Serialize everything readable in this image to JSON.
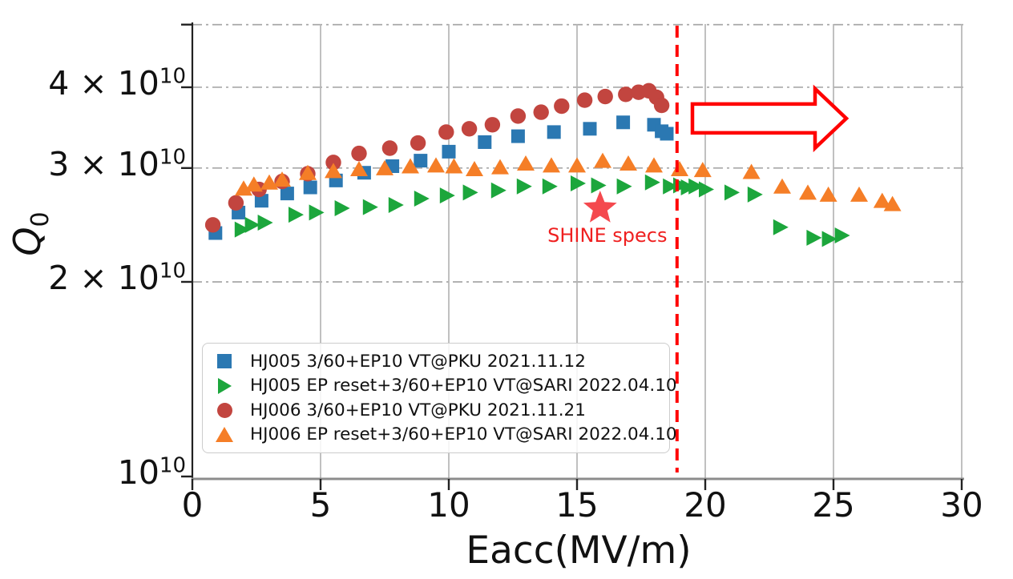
{
  "figure": {
    "background": "#ffffff",
    "x_axis": {
      "label": "Eacc(MV/m)",
      "ticks": [
        0,
        5,
        10,
        15,
        20,
        25,
        30
      ],
      "range": [
        0,
        30
      ]
    },
    "y_axis": {
      "label": "Q",
      "label_sub": "0",
      "scale": "log",
      "range_1e10": [
        1,
        5
      ],
      "tick_labels": [
        {
          "value_1e10": 1,
          "coef": "10",
          "exp": "10"
        },
        {
          "value_1e10": 2,
          "coef": "2 × 10",
          "exp": "10"
        },
        {
          "value_1e10": 3,
          "coef": "3 × 10",
          "exp": "10"
        },
        {
          "value_1e10": 4,
          "coef": "4 × 10",
          "exp": "10"
        }
      ],
      "tick_values_1e10": [
        1,
        2,
        3,
        4,
        5
      ]
    },
    "grid": {
      "vertical_style": "solid",
      "vertical_color": "#b5b5b5",
      "horizontal_style": "dash-dot",
      "horizontal_color": "#a8a8a8",
      "horizontal_values_1e10": [
        2,
        3,
        4,
        5
      ]
    },
    "legend_position": "lower-left-inside"
  },
  "chart_data": {
    "type": "scatter",
    "title": "",
    "xlabel": "Eacc(MV/m)",
    "ylabel": "Q0",
    "x_range": [
      0,
      30
    ],
    "y_scale": "log",
    "y_range_1e10": [
      1,
      5
    ],
    "units": {
      "x": "MV/m",
      "y": "Q0 in units of 1e10"
    },
    "series": [
      {
        "id": "hj005-pku",
        "label": "HJ005 3/60+EP10 VT@PKU 2021.11.12",
        "marker": "square",
        "color": "#2b78b2",
        "points": [
          [
            0.9,
            2.38
          ],
          [
            1.8,
            2.56
          ],
          [
            2.7,
            2.67
          ],
          [
            3.7,
            2.74
          ],
          [
            4.6,
            2.8
          ],
          [
            5.6,
            2.87
          ],
          [
            6.7,
            2.95
          ],
          [
            7.8,
            3.02
          ],
          [
            8.9,
            3.08
          ],
          [
            10.0,
            3.18
          ],
          [
            11.4,
            3.29
          ],
          [
            12.7,
            3.36
          ],
          [
            14.1,
            3.41
          ],
          [
            15.5,
            3.45
          ],
          [
            16.8,
            3.53
          ],
          [
            18.0,
            3.5
          ],
          [
            18.3,
            3.42
          ],
          [
            18.5,
            3.39
          ]
        ]
      },
      {
        "id": "hj005-sari",
        "label": "HJ005 EP reset+3/60+EP10 VT@SARI 2022.04.10",
        "marker": "triangle-right",
        "color": "#1ca63c",
        "points": [
          [
            1.9,
            2.41
          ],
          [
            2.3,
            2.45
          ],
          [
            2.8,
            2.47
          ],
          [
            4.0,
            2.54
          ],
          [
            4.8,
            2.56
          ],
          [
            5.8,
            2.6
          ],
          [
            6.9,
            2.61
          ],
          [
            7.9,
            2.63
          ],
          [
            8.9,
            2.69
          ],
          [
            9.9,
            2.72
          ],
          [
            10.8,
            2.75
          ],
          [
            11.9,
            2.77
          ],
          [
            12.9,
            2.81
          ],
          [
            13.9,
            2.81
          ],
          [
            15.0,
            2.84
          ],
          [
            15.8,
            2.82
          ],
          [
            16.8,
            2.81
          ],
          [
            17.9,
            2.85
          ],
          [
            18.6,
            2.81
          ],
          [
            19.0,
            2.82
          ],
          [
            19.3,
            2.8
          ],
          [
            19.6,
            2.81
          ],
          [
            20.0,
            2.78
          ],
          [
            21.0,
            2.75
          ],
          [
            21.9,
            2.73
          ],
          [
            22.9,
            2.43
          ],
          [
            24.2,
            2.34
          ],
          [
            24.8,
            2.33
          ],
          [
            25.3,
            2.36
          ]
        ]
      },
      {
        "id": "hj006-pku",
        "label": "HJ006 3/60+EP10 VT@PKU 2021.11.21",
        "marker": "circle",
        "color": "#c2453f",
        "points": [
          [
            0.8,
            2.45
          ],
          [
            1.7,
            2.65
          ],
          [
            2.6,
            2.78
          ],
          [
            3.5,
            2.86
          ],
          [
            4.5,
            2.94
          ],
          [
            5.5,
            3.06
          ],
          [
            6.5,
            3.16
          ],
          [
            7.7,
            3.22
          ],
          [
            8.8,
            3.28
          ],
          [
            9.9,
            3.41
          ],
          [
            10.8,
            3.45
          ],
          [
            11.7,
            3.5
          ],
          [
            12.7,
            3.61
          ],
          [
            13.6,
            3.66
          ],
          [
            14.4,
            3.74
          ],
          [
            15.3,
            3.82
          ],
          [
            16.1,
            3.87
          ],
          [
            16.9,
            3.9
          ],
          [
            17.4,
            3.93
          ],
          [
            17.8,
            3.95
          ],
          [
            18.1,
            3.86
          ],
          [
            18.3,
            3.75
          ]
        ]
      },
      {
        "id": "hj006-sari",
        "label": "HJ006 EP reset+3/60+EP10 VT@SARI 2022.04.10",
        "marker": "triangle-up",
        "color": "#f57e27",
        "points": [
          [
            2.0,
            2.79
          ],
          [
            2.4,
            2.83
          ],
          [
            3.0,
            2.85
          ],
          [
            3.5,
            2.88
          ],
          [
            4.5,
            2.95
          ],
          [
            5.5,
            2.97
          ],
          [
            6.5,
            2.99
          ],
          [
            7.5,
            3.0
          ],
          [
            8.5,
            3.02
          ],
          [
            9.5,
            3.03
          ],
          [
            10.2,
            3.02
          ],
          [
            11.0,
            2.99
          ],
          [
            12.0,
            3.01
          ],
          [
            13.0,
            3.05
          ],
          [
            14.0,
            3.03
          ],
          [
            15.0,
            3.03
          ],
          [
            16.0,
            3.08
          ],
          [
            17.0,
            3.05
          ],
          [
            18.0,
            3.03
          ],
          [
            19.0,
            2.99
          ],
          [
            19.9,
            2.98
          ],
          [
            21.8,
            2.96
          ],
          [
            23.0,
            2.81
          ],
          [
            24.0,
            2.75
          ],
          [
            24.8,
            2.73
          ],
          [
            26.0,
            2.73
          ],
          [
            26.9,
            2.67
          ],
          [
            27.3,
            2.64
          ]
        ]
      }
    ],
    "annotations": {
      "star": {
        "x": 15.9,
        "y_1e10": 2.6,
        "color": "#f4494e",
        "label": "SHINE specs",
        "label_color": "#ef2020"
      },
      "vline": {
        "x": 18.9,
        "style": "dashed",
        "color": "#ff0000"
      },
      "arrow": {
        "direction": "right",
        "x_start": 19.5,
        "x_end": 25.5,
        "y_1e10": 3.58,
        "stroke": "#ff0000",
        "fill": "#ffffff"
      }
    }
  }
}
